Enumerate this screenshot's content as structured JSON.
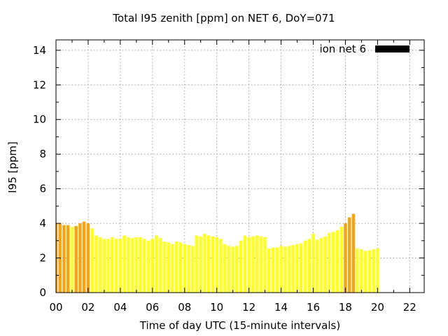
{
  "chart_data": {
    "type": "bar",
    "title": "Total I95 zenith [ppm] on NET 6, DoY=071",
    "xlabel": "Time of day UTC (15-minute intervals)",
    "ylabel": "I95 [ppm]",
    "xlim": [
      0,
      22.9
    ],
    "ylim": [
      0,
      14.6
    ],
    "x_ticks": [
      "00",
      "02",
      "04",
      "06",
      "08",
      "10",
      "12",
      "14",
      "16",
      "18",
      "20",
      "22"
    ],
    "y_ticks": [
      "0",
      "2",
      "4",
      "6",
      "8",
      "10",
      "12",
      "14"
    ],
    "grid": true,
    "legend": {
      "label": "ion net 6",
      "position": "top-right",
      "color": "#000000"
    },
    "bar_colors": {
      "normal": "#ffff22",
      "elevated": "#f7a413",
      "orange_threshold": 3.85
    },
    "interval_hours": 0.25,
    "values": [
      4.0,
      4.0,
      3.9,
      3.9,
      3.8,
      3.85,
      4.0,
      4.1,
      4.0,
      3.7,
      3.3,
      3.2,
      3.1,
      3.1,
      3.2,
      3.1,
      3.1,
      3.3,
      3.2,
      3.15,
      3.2,
      3.2,
      3.1,
      3.0,
      3.1,
      3.3,
      3.15,
      2.95,
      2.9,
      2.8,
      2.95,
      2.9,
      2.8,
      2.75,
      2.7,
      3.3,
      3.25,
      3.4,
      3.3,
      3.25,
      3.2,
      3.1,
      2.8,
      2.7,
      2.65,
      2.7,
      3.0,
      3.3,
      3.2,
      3.25,
      3.3,
      3.25,
      3.2,
      2.55,
      2.6,
      2.6,
      2.7,
      2.65,
      2.7,
      2.75,
      2.8,
      2.85,
      3.0,
      3.1,
      3.4,
      3.05,
      3.15,
      3.25,
      3.45,
      3.5,
      3.6,
      3.8,
      4.0,
      4.35,
      4.55,
      2.55,
      2.5,
      2.4,
      2.45,
      2.5,
      2.55
    ]
  }
}
